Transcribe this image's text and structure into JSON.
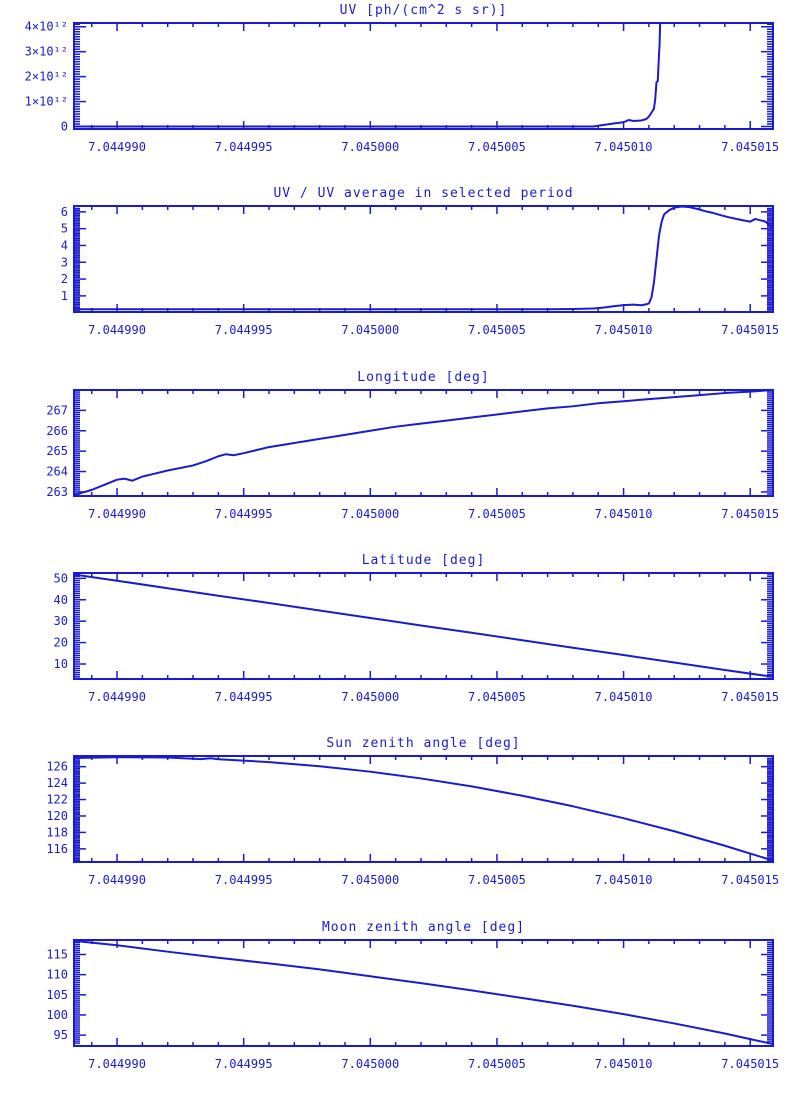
{
  "page": {
    "background": "#ffffff",
    "accent": "#1b1bce"
  },
  "chart_data": [
    {
      "type": "line",
      "title": "UV [ph/(cm^2 s sr)]",
      "xlabel": "",
      "ylabel": "",
      "grid": false,
      "legend": "none",
      "xlim": [
        7.0449883,
        7.0450159
      ],
      "ylim": [
        -0.1,
        4.15
      ],
      "y_value_scale": "1e12",
      "x_ticks": {
        "major_values": [
          7.04499,
          7.044995,
          7.045,
          7.045005,
          7.04501,
          7.045015
        ],
        "major_labels": [
          "7.044990",
          "7.044995",
          "7.045000",
          "7.045005",
          "7.045010",
          "7.045015"
        ],
        "minor_step": 1e-06
      },
      "y_ticks": {
        "major_values": [
          0,
          1,
          2,
          3,
          4
        ],
        "major_labels": [
          "0",
          "1×10¹²",
          "2×10¹²",
          "3×10¹²",
          "4×10¹²"
        ],
        "minor_step": 0.1
      },
      "series": [
        {
          "name": "uv",
          "points": [
            [
              7.0449883,
              0
            ],
            [
              7.0450088,
              0
            ],
            [
              7.0450092,
              0.06
            ],
            [
              7.0450096,
              0.12
            ],
            [
              7.04501,
              0.17
            ],
            [
              7.0450102,
              0.26
            ],
            [
              7.0450104,
              0.22
            ],
            [
              7.0450107,
              0.24
            ],
            [
              7.0450109,
              0.3
            ],
            [
              7.045011,
              0.4
            ],
            [
              7.0450111,
              0.55
            ],
            [
              7.0450112,
              0.72
            ],
            [
              7.04501125,
              1.1
            ],
            [
              7.0450113,
              1.78
            ],
            [
              7.04501135,
              1.82
            ],
            [
              7.0450114,
              2.9
            ],
            [
              7.04501142,
              3.25
            ],
            [
              7.04501145,
              4.4
            ]
          ]
        }
      ]
    },
    {
      "type": "line",
      "title": "UV / UV average in selected period",
      "xlabel": "",
      "ylabel": "",
      "grid": false,
      "legend": "none",
      "xlim": [
        7.0449883,
        7.0450159
      ],
      "ylim": [
        0.04,
        6.35
      ],
      "x_ticks": {
        "major_values": [
          7.04499,
          7.044995,
          7.045,
          7.045005,
          7.04501,
          7.045015
        ],
        "major_labels": [
          "7.044990",
          "7.044995",
          "7.045000",
          "7.045005",
          "7.045010",
          "7.045015"
        ],
        "minor_step": 1e-06
      },
      "y_ticks": {
        "major_values": [
          1,
          2,
          3,
          4,
          5,
          6
        ],
        "major_labels": [
          "1",
          "2",
          "3",
          "4",
          "5",
          "6"
        ],
        "minor_step": 0.1
      },
      "series": [
        {
          "name": "uv-ratio",
          "points": [
            [
              7.0449883,
              0.2
            ],
            [
              7.045007,
              0.2
            ],
            [
              7.045008,
              0.22
            ],
            [
              7.0450088,
              0.25
            ],
            [
              7.0450092,
              0.3
            ],
            [
              7.0450096,
              0.38
            ],
            [
              7.04501,
              0.45
            ],
            [
              7.0450104,
              0.48
            ],
            [
              7.0450107,
              0.44
            ],
            [
              7.0450109,
              0.5
            ],
            [
              7.045011,
              0.55
            ],
            [
              7.0450111,
              0.9
            ],
            [
              7.0450112,
              1.8
            ],
            [
              7.0450113,
              3.2
            ],
            [
              7.0450114,
              4.6
            ],
            [
              7.0450115,
              5.4
            ],
            [
              7.0450116,
              5.85
            ],
            [
              7.0450118,
              6.1
            ],
            [
              7.045012,
              6.25
            ],
            [
              7.0450123,
              6.32
            ],
            [
              7.0450126,
              6.28
            ],
            [
              7.0450129,
              6.18
            ],
            [
              7.0450132,
              6.05
            ],
            [
              7.0450135,
              5.95
            ],
            [
              7.0450138,
              5.82
            ],
            [
              7.0450141,
              5.7
            ],
            [
              7.0450144,
              5.6
            ],
            [
              7.0450147,
              5.5
            ],
            [
              7.045015,
              5.42
            ],
            [
              7.0450152,
              5.58
            ],
            [
              7.0450154,
              5.5
            ],
            [
              7.0450156,
              5.42
            ],
            [
              7.0450158,
              5.15
            ],
            [
              7.0450159,
              5.0
            ]
          ]
        }
      ]
    },
    {
      "type": "line",
      "title": "Longitude [deg]",
      "xlabel": "",
      "ylabel": "",
      "grid": false,
      "legend": "none",
      "xlim": [
        7.0449883,
        7.0450159
      ],
      "ylim": [
        262.8,
        268.0
      ],
      "x_ticks": {
        "major_values": [
          7.04499,
          7.044995,
          7.045,
          7.045005,
          7.04501,
          7.045015
        ],
        "major_labels": [
          "7.044990",
          "7.044995",
          "7.045000",
          "7.045005",
          "7.045010",
          "7.045015"
        ],
        "minor_step": 1e-06
      },
      "y_ticks": {
        "major_values": [
          263,
          264,
          265,
          266,
          267
        ],
        "major_labels": [
          "263",
          "264",
          "265",
          "266",
          "267"
        ],
        "minor_step": 0.1
      },
      "series": [
        {
          "name": "longitude",
          "points": [
            [
              7.0449883,
              262.85
            ],
            [
              7.044989,
              263.1
            ],
            [
              7.0449895,
              263.35
            ],
            [
              7.04499,
              263.6
            ],
            [
              7.0449903,
              263.65
            ],
            [
              7.0449906,
              263.55
            ],
            [
              7.044991,
              263.75
            ],
            [
              7.0449915,
              263.9
            ],
            [
              7.044992,
              264.05
            ],
            [
              7.044993,
              264.3
            ],
            [
              7.0449935,
              264.5
            ],
            [
              7.044994,
              264.75
            ],
            [
              7.0449943,
              264.85
            ],
            [
              7.0449946,
              264.8
            ],
            [
              7.044995,
              264.9
            ],
            [
              7.0449955,
              265.05
            ],
            [
              7.044996,
              265.2
            ],
            [
              7.044997,
              265.4
            ],
            [
              7.044998,
              265.6
            ],
            [
              7.044999,
              265.8
            ],
            [
              7.045,
              266.0
            ],
            [
              7.045001,
              266.2
            ],
            [
              7.045002,
              266.35
            ],
            [
              7.045003,
              266.5
            ],
            [
              7.045004,
              266.65
            ],
            [
              7.045005,
              266.8
            ],
            [
              7.045006,
              266.95
            ],
            [
              7.045007,
              267.1
            ],
            [
              7.045008,
              267.2
            ],
            [
              7.045009,
              267.35
            ],
            [
              7.04501,
              267.45
            ],
            [
              7.045011,
              267.55
            ],
            [
              7.045012,
              267.65
            ],
            [
              7.045013,
              267.75
            ],
            [
              7.045014,
              267.85
            ],
            [
              7.045015,
              267.92
            ],
            [
              7.0450159,
              268.0
            ]
          ]
        }
      ]
    },
    {
      "type": "line",
      "title": "Latitude [deg]",
      "xlabel": "",
      "ylabel": "",
      "grid": false,
      "legend": "none",
      "xlim": [
        7.0449883,
        7.0450159
      ],
      "ylim": [
        3.0,
        52.5
      ],
      "x_ticks": {
        "major_values": [
          7.04499,
          7.044995,
          7.045,
          7.045005,
          7.04501,
          7.045015
        ],
        "major_labels": [
          "7.044990",
          "7.044995",
          "7.045000",
          "7.045005",
          "7.045010",
          "7.045015"
        ],
        "minor_step": 1e-06
      },
      "y_ticks": {
        "major_values": [
          10,
          20,
          30,
          40,
          50
        ],
        "major_labels": [
          "10",
          "20",
          "30",
          "40",
          "50"
        ],
        "minor_step": 1
      },
      "series": [
        {
          "name": "latitude",
          "points": [
            [
              7.0449883,
              51.8
            ],
            [
              7.04499,
              48.9
            ],
            [
              7.044992,
              45.4
            ],
            [
              7.044994,
              41.9
            ],
            [
              7.044996,
              38.5
            ],
            [
              7.044998,
              35.0
            ],
            [
              7.045,
              31.5
            ],
            [
              7.045002,
              28.0
            ],
            [
              7.045004,
              24.6
            ],
            [
              7.045006,
              21.1
            ],
            [
              7.045008,
              17.6
            ],
            [
              7.04501,
              14.2
            ],
            [
              7.045012,
              10.7
            ],
            [
              7.045014,
              7.2
            ],
            [
              7.0450159,
              4.0
            ]
          ]
        }
      ]
    },
    {
      "type": "line",
      "title": "Sun zenith angle [deg]",
      "xlabel": "",
      "ylabel": "",
      "grid": false,
      "legend": "none",
      "xlim": [
        7.0449883,
        7.0450159
      ],
      "ylim": [
        114.4,
        127.3
      ],
      "x_ticks": {
        "major_values": [
          7.04499,
          7.044995,
          7.045,
          7.045005,
          7.04501,
          7.045015
        ],
        "major_labels": [
          "7.044990",
          "7.044995",
          "7.045000",
          "7.045005",
          "7.045010",
          "7.045015"
        ],
        "minor_step": 1e-06
      },
      "y_ticks": {
        "major_values": [
          116,
          118,
          120,
          122,
          124,
          126
        ],
        "major_labels": [
          "116",
          "118",
          "120",
          "122",
          "124",
          "126"
        ],
        "minor_step": 0.2
      },
      "series": [
        {
          "name": "sun-zenith",
          "points": [
            [
              7.0449883,
              127.05
            ],
            [
              7.04499,
              127.15
            ],
            [
              7.044992,
              127.11
            ],
            [
              7.0449933,
              126.92
            ],
            [
              7.0449937,
              127.02
            ],
            [
              7.044994,
              126.91
            ],
            [
              7.044996,
              126.56
            ],
            [
              7.044998,
              126.05
            ],
            [
              7.045,
              125.39
            ],
            [
              7.045002,
              124.57
            ],
            [
              7.045004,
              123.6
            ],
            [
              7.045006,
              122.46
            ],
            [
              7.045008,
              121.18
            ],
            [
              7.04501,
              119.73
            ],
            [
              7.045012,
              118.14
            ],
            [
              7.045014,
              116.38
            ],
            [
              7.0450159,
              114.57
            ]
          ]
        }
      ]
    },
    {
      "type": "line",
      "title": "Moon zenith angle [deg]",
      "xlabel": "",
      "ylabel": "",
      "grid": false,
      "legend": "none",
      "xlim": [
        7.0449883,
        7.0450159
      ],
      "ylim": [
        92.3,
        118.6
      ],
      "x_ticks": {
        "major_values": [
          7.04499,
          7.044995,
          7.045,
          7.045005,
          7.04501,
          7.045015
        ],
        "major_labels": [
          "7.044990",
          "7.044995",
          "7.045000",
          "7.045005",
          "7.045010",
          "7.045015"
        ],
        "minor_step": 1e-06
      },
      "y_ticks": {
        "major_values": [
          95,
          100,
          105,
          110,
          115
        ],
        "major_labels": [
          "95",
          "100",
          "105",
          "110",
          "115"
        ],
        "minor_step": 0.5
      },
      "series": [
        {
          "name": "moon-zenith",
          "points": [
            [
              7.0449883,
              118.4
            ],
            [
              7.04499,
              117.3
            ],
            [
              7.044992,
              115.7
            ],
            [
              7.044994,
              114.2
            ],
            [
              7.044996,
              112.8
            ],
            [
              7.044998,
              111.3
            ],
            [
              7.045,
              109.6
            ],
            [
              7.045002,
              107.9
            ],
            [
              7.045004,
              106.1
            ],
            [
              7.045006,
              104.2
            ],
            [
              7.045008,
              102.3
            ],
            [
              7.04501,
              100.2
            ],
            [
              7.045012,
              97.9
            ],
            [
              7.045014,
              95.4
            ],
            [
              7.045015,
              94.0
            ],
            [
              7.0450159,
              92.8
            ]
          ]
        }
      ]
    }
  ]
}
